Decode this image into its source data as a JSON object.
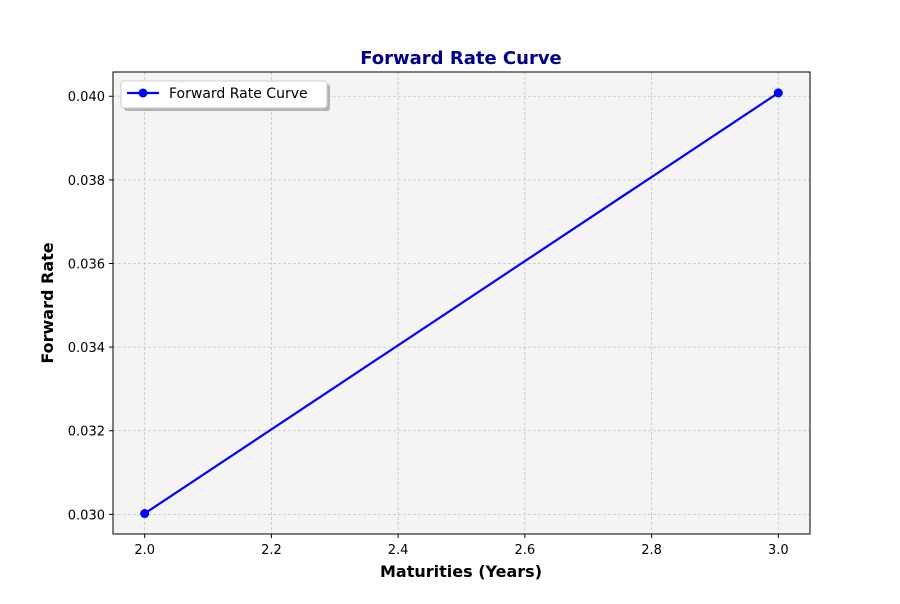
{
  "chart_data": {
    "type": "line",
    "title": "Forward Rate Curve",
    "xlabel": "Maturities (Years)",
    "ylabel": "Forward Rate",
    "x": [
      2.0,
      3.0
    ],
    "series": [
      {
        "name": "Forward Rate Curve",
        "values": [
          0.03002,
          0.04008
        ],
        "color": "#0000ff",
        "marker": "circle"
      }
    ],
    "xlim": [
      1.95,
      3.05
    ],
    "ylim": [
      0.02953,
      0.04058
    ],
    "xticks": [
      2.0,
      2.2,
      2.4,
      2.6,
      2.8,
      3.0
    ],
    "xtick_labels": [
      "2.0",
      "2.2",
      "2.4",
      "2.6",
      "2.8",
      "3.0"
    ],
    "yticks": [
      0.03,
      0.032,
      0.034,
      0.036,
      0.038,
      0.04
    ],
    "ytick_labels": [
      "0.030",
      "0.032",
      "0.034",
      "0.036",
      "0.038",
      "0.040"
    ],
    "grid": true,
    "legend_position": "top-left",
    "colors": {
      "title": "#00008b",
      "axes_background": "#f4f4f4",
      "grid": "#b0b0b0"
    }
  }
}
